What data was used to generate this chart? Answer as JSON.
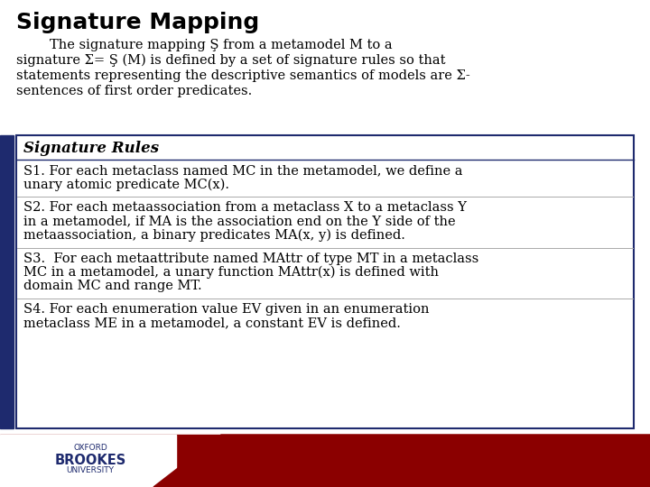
{
  "title": "Signature Mapping",
  "bg_color": "#ffffff",
  "title_color": "#000000",
  "title_fontsize": 18,
  "left_bar_color": "#1e2a6e",
  "intro_line1": "        The signature mapping Ş from a metamodel M to a",
  "intro_line2": "signature Σ= Ş (M) is defined by a set of signature rules so that",
  "intro_line3": "statements representing the descriptive semantics of models are Σ-",
  "intro_line4": "sentences of first order predicates.",
  "box_border_color": "#1e2a6e",
  "box_bg_color": "#ffffff",
  "rules_header": "Signature Rules",
  "rule1_line1": "S1. For each metaclass named MC in the metamodel, we define a",
  "rule1_line2": "unary atomic predicate MC(x).",
  "rule2_line1": "S2. For each metaassociation from a metaclass X to a metaclass Y",
  "rule2_line2": "in a metamodel, if MA is the association end on the Y side of the",
  "rule2_line3": "metaassociation, a binary predicates MA(x, y) is defined.",
  "rule3_line1": "S3.  For each metaattribute named MAttr of type MT in a metaclass",
  "rule3_line2": "MC in a metamodel, a unary function MAttr(x) is defined with",
  "rule3_line3": "domain MC and range MT.",
  "rule4_line1": "S4. For each enumeration value EV given in an enumeration",
  "rule4_line2": "metaclass ME in a metamodel, a constant EV is defined.",
  "footer_bg_color": "#8b0000",
  "oxford_color": "#1e2a6e",
  "sep_color": "#aaaaaa",
  "body_fontsize": 10.5,
  "header_fontsize": 12
}
